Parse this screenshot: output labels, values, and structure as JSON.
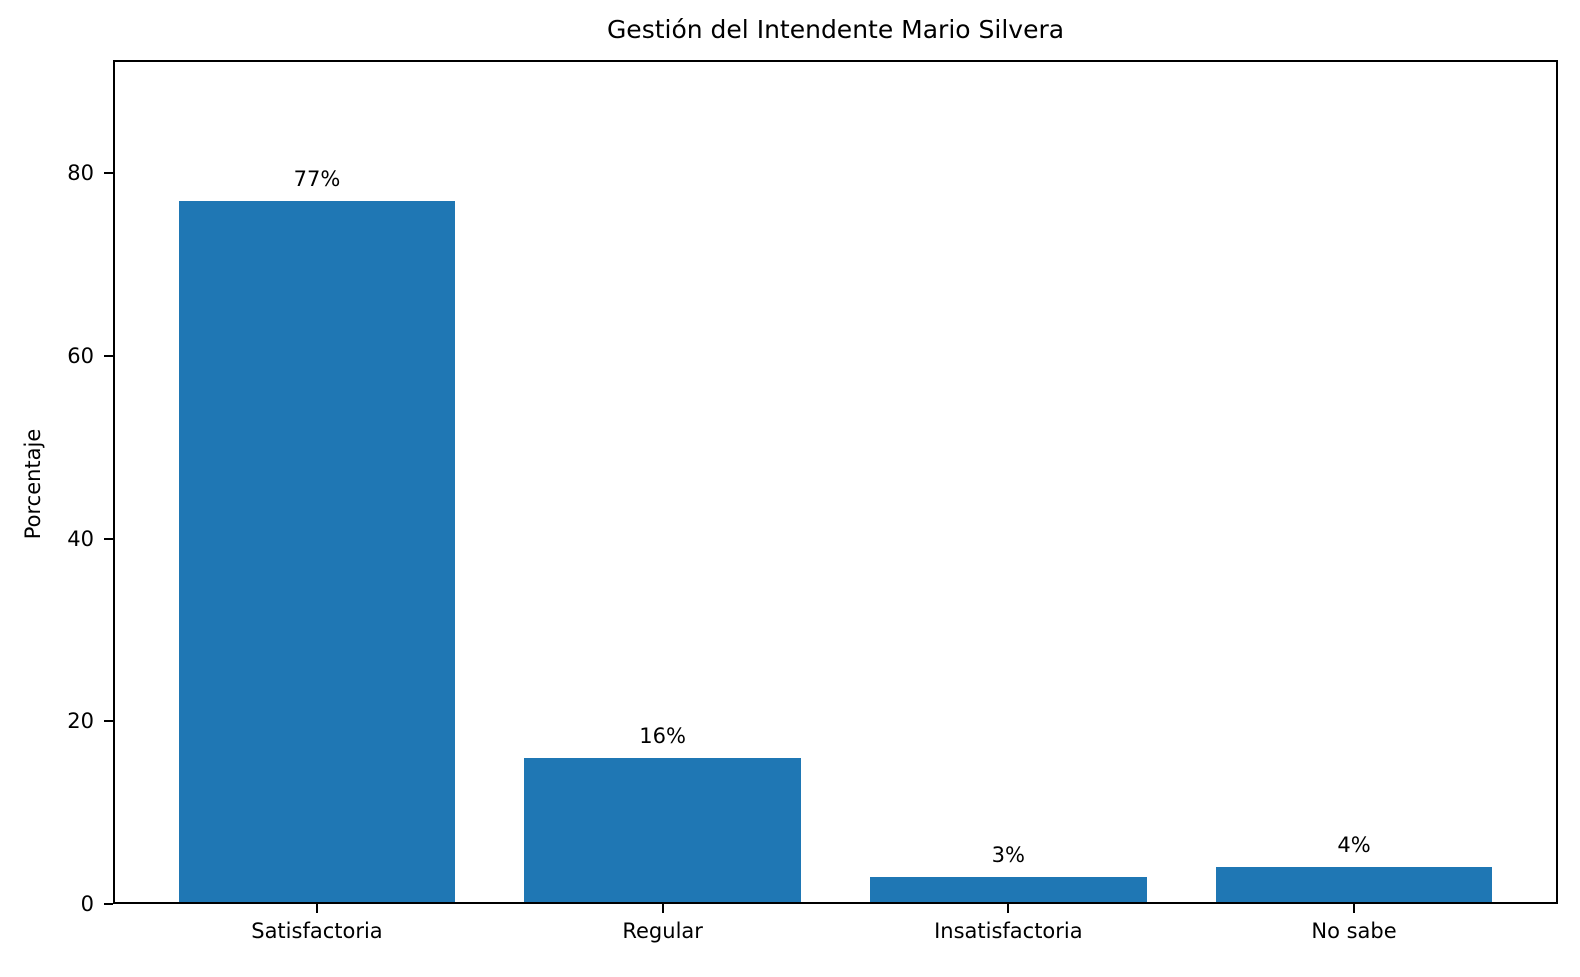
{
  "chart_data": {
    "type": "bar",
    "title": "Gestión del Intendente Mario Silvera",
    "ylabel": "Porcentaje",
    "xlabel": "",
    "categories": [
      "Satisfactoria",
      "Regular",
      "Insatisfactoria",
      "No sabe"
    ],
    "values": [
      77,
      16,
      3,
      4
    ],
    "value_labels": [
      "77%",
      "16%",
      "3%",
      "4%"
    ],
    "yticks": [
      0,
      20,
      40,
      60,
      80
    ],
    "ytick_labels": [
      "0",
      "20",
      "40",
      "60",
      "80"
    ],
    "ylim": [
      0,
      92.4
    ],
    "xlim": [
      -0.59,
      3.59
    ],
    "bar_width_units": 0.8,
    "bar_color": "#1f77b4",
    "axis_color": "#000000",
    "background_color": "#ffffff",
    "grid": false,
    "legend_position": "none"
  }
}
